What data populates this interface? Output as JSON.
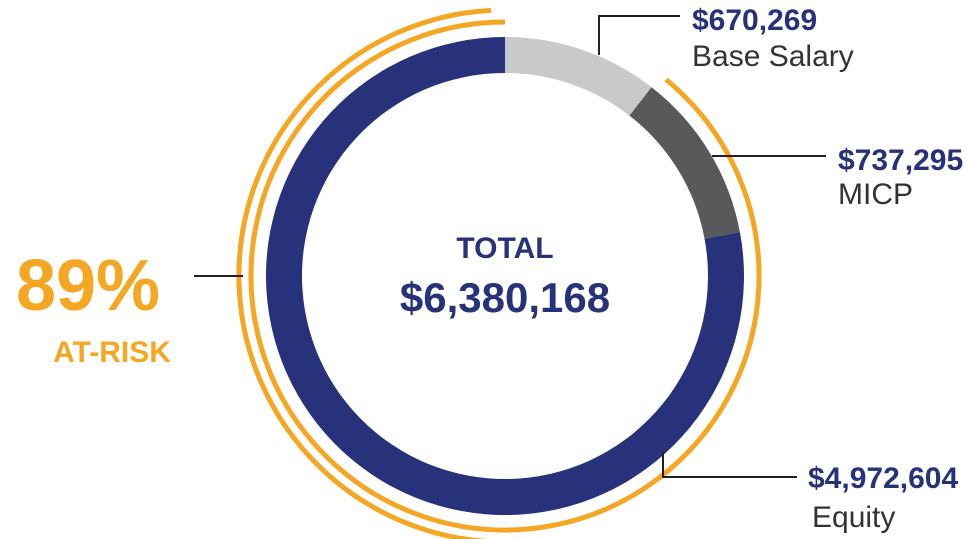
{
  "chart_data": {
    "type": "pie",
    "title": "",
    "center": {
      "label": "TOTAL",
      "value": "$6,380,168"
    },
    "total": 6380168,
    "slices": [
      {
        "label": "Base Salary",
        "display_value": "$670,269",
        "value": 670269,
        "color": "#c8c9cb"
      },
      {
        "label": "MICP",
        "display_value": "$737,295",
        "value": 737295,
        "color": "#58595b"
      },
      {
        "label": "Equity",
        "display_value": "$4,972,604",
        "value": 4972604,
        "color": "#27327a"
      }
    ],
    "at_risk": {
      "percent_label": "89%",
      "label": "AT-RISK",
      "color": "#f5a623"
    },
    "colors": {
      "value_text": "#27327a",
      "label_text": "#333333",
      "leader": "#231f20",
      "accent": "#f5a623"
    }
  }
}
